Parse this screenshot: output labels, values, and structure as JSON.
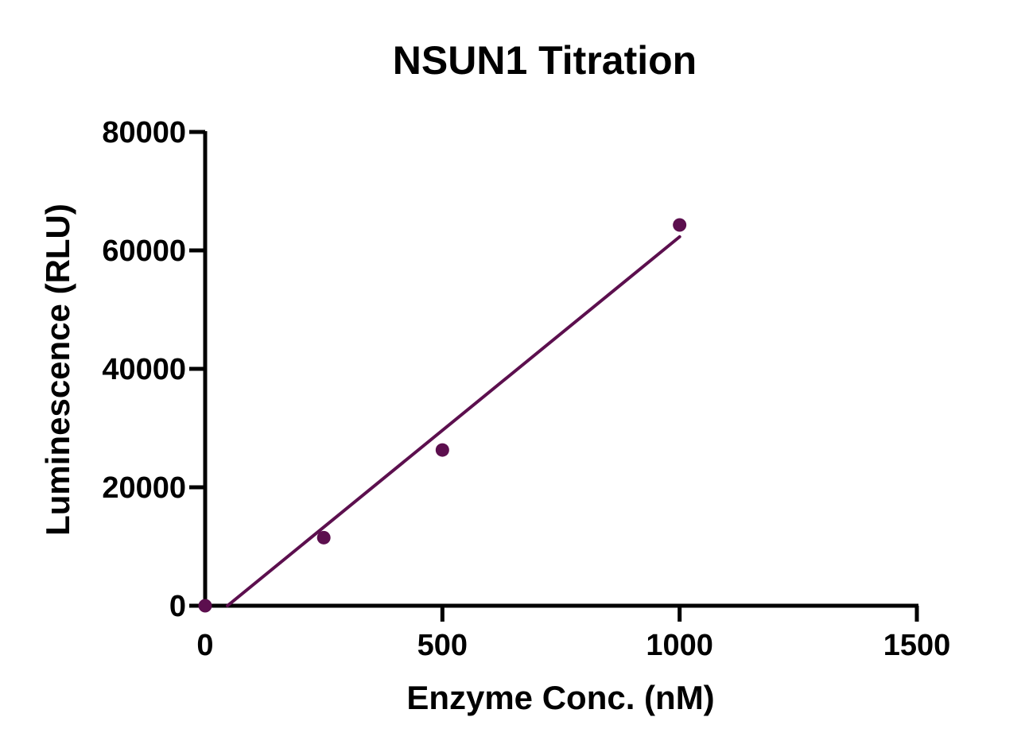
{
  "chart_data": {
    "type": "scatter",
    "title": "NSUN1 Titration",
    "xlabel": "Enzyme Conc. (nM)",
    "ylabel": "Luminescence (RLU)",
    "xlim": [
      0,
      1500
    ],
    "ylim": [
      0,
      80000
    ],
    "xticks": [
      0,
      500,
      1000,
      1500
    ],
    "yticks": [
      0,
      20000,
      40000,
      60000,
      80000
    ],
    "xtick_labels": [
      "0",
      "500",
      "1000",
      "1500"
    ],
    "ytick_labels": [
      "0",
      "20000",
      "40000",
      "60000",
      "80000"
    ],
    "grid": false,
    "color": "#5c0f4e",
    "series": [
      {
        "points": [
          {
            "x": 0,
            "y": 0
          },
          {
            "x": 250,
            "y": 11500
          },
          {
            "x": 500,
            "y": 26300
          },
          {
            "x": 1000,
            "y": 64300
          }
        ]
      }
    ],
    "fit_line": {
      "type": "linear",
      "x_range": [
        47,
        1000
      ],
      "y_range": [
        0,
        62300
      ]
    }
  }
}
